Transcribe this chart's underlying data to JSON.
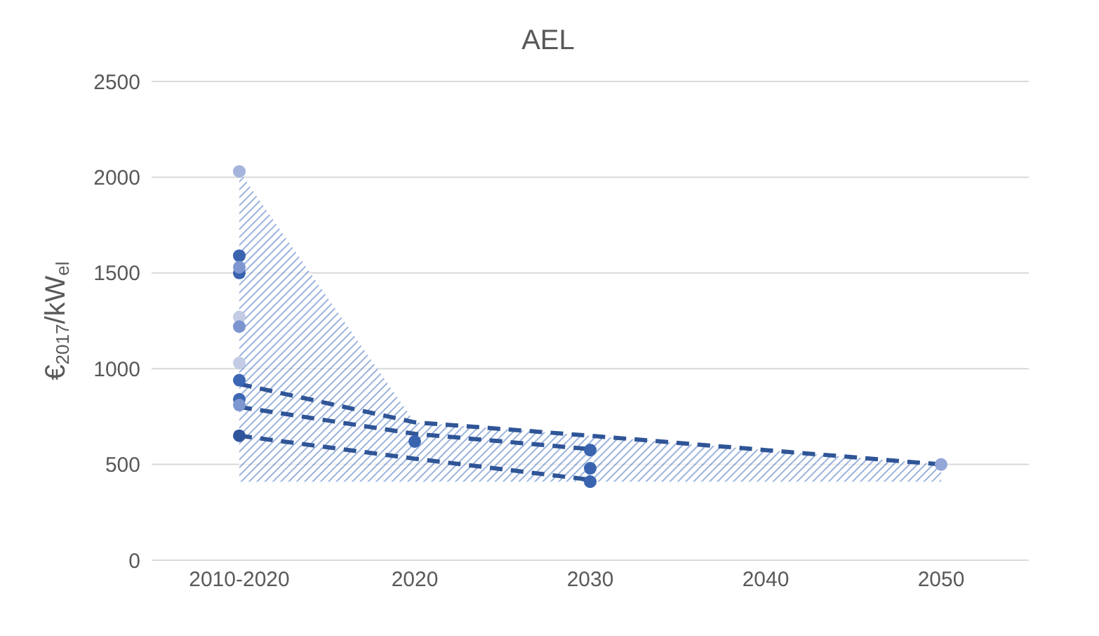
{
  "chart_data": {
    "type": "line",
    "title": "AEL",
    "ylabel": "€$_{2017}$/kW$_{el}$",
    "categories": [
      "2010-2020",
      "2020",
      "2030",
      "2040",
      "2050"
    ],
    "ylim": [
      0,
      2500
    ],
    "yticks": [
      0,
      500,
      1000,
      1500,
      2000,
      2500
    ],
    "grid": "y",
    "legend": false,
    "line_style": "dashed",
    "marker": "none",
    "series": [
      {
        "type": "area",
        "color": "#4472c4",
        "values": [
          null,
          null,
          null,
          null,
          null
        ],
        "lower": [
          410,
          410,
          410,
          410,
          410
        ],
        "upper": [
          2030,
          720,
          650,
          575,
          500
        ]
      },
      {
        "color": "#2f5597",
        "values": [
          920,
          720,
          650,
          575,
          500
        ]
      },
      {
        "color": "#2f5597",
        "values": [
          800,
          660,
          580,
          null,
          null
        ]
      },
      {
        "color": "#2f5597",
        "values": [
          650,
          530,
          420,
          null,
          null
        ]
      },
      {
        "type": "scatter",
        "marker": "circle",
        "values": [
          2030,
          620,
          575,
          null,
          500
        ],
        "colors": [
          "#a4b4dc",
          "#3a64b0",
          "#3a64b0",
          null,
          "#93a6d8"
        ]
      },
      {
        "type": "scatter",
        "marker": "circle",
        "values": [
          1590,
          null,
          480,
          null,
          null
        ],
        "colors": [
          "#3a63b0",
          null,
          "#3a64b0",
          null,
          null
        ]
      },
      {
        "type": "scatter",
        "marker": "circle",
        "values": [
          1500,
          null,
          410,
          null,
          null
        ],
        "colors": [
          "#3a63b0",
          null,
          "#3a64b0",
          null,
          null
        ]
      },
      {
        "type": "scatter",
        "marker": "circle",
        "values": [
          1530,
          null,
          null,
          null,
          null
        ],
        "colors": [
          "#7f97d0",
          null,
          null,
          null,
          null
        ]
      },
      {
        "type": "scatter",
        "marker": "circle",
        "values": [
          1270,
          null,
          null,
          null,
          null
        ],
        "colors": [
          "#c3cbe5",
          null,
          null,
          null,
          null
        ]
      },
      {
        "type": "scatter",
        "marker": "circle",
        "values": [
          1220,
          null,
          null,
          null,
          null
        ],
        "colors": [
          "#7d95cf",
          null,
          null,
          null,
          null
        ]
      },
      {
        "type": "scatter",
        "marker": "circle",
        "values": [
          1030,
          null,
          null,
          null,
          null
        ],
        "colors": [
          "#c3cbe5",
          null,
          null,
          null,
          null
        ]
      },
      {
        "type": "scatter",
        "marker": "circle",
        "values": [
          940,
          null,
          null,
          null,
          null
        ],
        "colors": [
          "#3d67b5",
          null,
          null,
          null,
          null
        ]
      },
      {
        "type": "scatter",
        "marker": "circle",
        "values": [
          840,
          null,
          null,
          null,
          null
        ],
        "colors": [
          "#3d67b5",
          null,
          null,
          null,
          null
        ]
      },
      {
        "type": "scatter",
        "marker": "circle",
        "values": [
          810,
          null,
          null,
          null,
          null
        ],
        "colors": [
          "#7f97d0",
          null,
          null,
          null,
          null
        ]
      },
      {
        "type": "scatter",
        "marker": "circle",
        "values": [
          650,
          null,
          null,
          null,
          null
        ],
        "colors": [
          "#2f559d",
          null,
          null,
          null,
          null
        ]
      }
    ]
  }
}
